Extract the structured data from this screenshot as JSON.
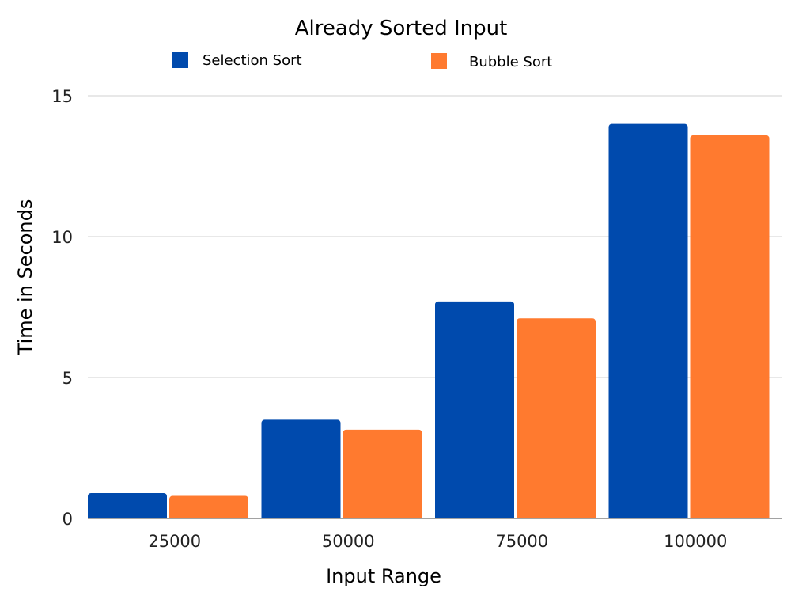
{
  "chart_data": {
    "type": "bar",
    "title": "Already Sorted Input",
    "xlabel": "Input Range",
    "ylabel": "Time in Seconds",
    "categories": [
      "25000",
      "50000",
      "75000",
      "100000"
    ],
    "series": [
      {
        "name": "Selection Sort",
        "color": "#004AAD",
        "values": [
          0.9,
          3.5,
          7.7,
          14.0
        ]
      },
      {
        "name": "Bubble Sort",
        "color": "#FF7A2F",
        "values": [
          0.8,
          3.15,
          7.1,
          13.6
        ]
      }
    ],
    "ylim": [
      0,
      15
    ],
    "yticks": [
      "0",
      "5",
      "10",
      "15"
    ],
    "grid": true,
    "legend": "top"
  }
}
